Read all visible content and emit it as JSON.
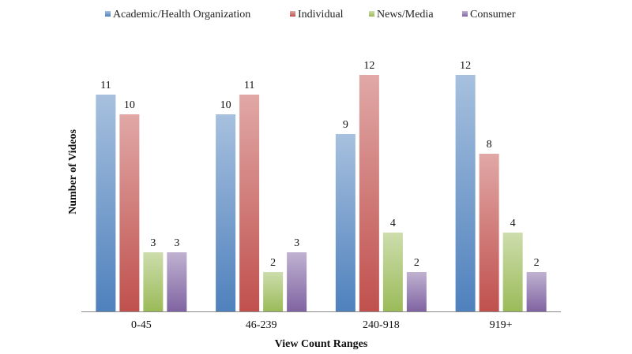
{
  "chart_data": {
    "type": "bar",
    "title": "",
    "xlabel": "View Count Ranges",
    "ylabel": "Number of Videos",
    "categories": [
      "0-45",
      "46-239",
      "240-918",
      "919+"
    ],
    "series": [
      {
        "name": "Academic/Health Organization",
        "values": [
          11,
          10,
          9,
          12
        ],
        "color": "#4f81bd"
      },
      {
        "name": "Individual",
        "values": [
          10,
          11,
          12,
          8
        ],
        "color": "#c0504d"
      },
      {
        "name": "News/Media",
        "values": [
          3,
          2,
          4,
          4
        ],
        "color": "#9bbb59"
      },
      {
        "name": "Consumer",
        "values": [
          3,
          3,
          2,
          2
        ],
        "color": "#8064a2"
      }
    ],
    "ylim": [
      0,
      12
    ],
    "grid": false,
    "legend_position": "top",
    "data_labels": true
  }
}
